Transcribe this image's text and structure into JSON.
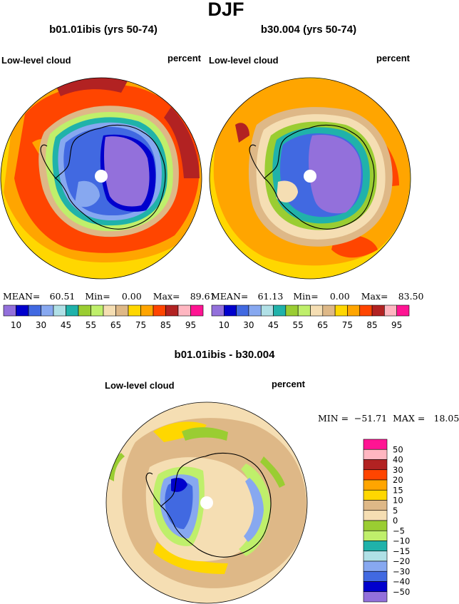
{
  "title": "DJF",
  "panels": [
    {
      "title": "b01.01ibis (yrs 50-74)",
      "field": "Low-level cloud",
      "units": "percent",
      "stats": {
        "mean_label": "MEAN=",
        "mean": "60.51",
        "min_label": "Min=",
        "min": "0.00",
        "max_label": "Max=",
        "max": "89.61"
      }
    },
    {
      "title": "b30.004 (yrs 50-74)",
      "field": "Low-level cloud",
      "units": "percent",
      "stats": {
        "mean_label": "MEAN=",
        "mean": "61.13",
        "min_label": "Min=",
        "min": "0.00",
        "max_label": "Max=",
        "max": "83.50"
      }
    },
    {
      "title": "b01.01ibis - b30.004",
      "field": "Low-level cloud",
      "units": "percent",
      "stats": {
        "min_label": "MIN =",
        "min": "−51.71",
        "max_label": "MAX =",
        "max": "18.05"
      }
    }
  ],
  "chart_data": [
    {
      "type": "heatmap",
      "projection": "south polar stereographic",
      "title": "b01.01ibis (yrs 50-74)",
      "variable": "Low-level cloud",
      "units": "percent",
      "levels": [
        10,
        20,
        30,
        40,
        45,
        50,
        55,
        60,
        65,
        70,
        75,
        80,
        85,
        90,
        95
      ],
      "colorbar_ticks": [
        "10",
        "30",
        "45",
        "55",
        "65",
        "75",
        "85",
        "95"
      ],
      "colors": [
        "#9370db",
        "#0000cd",
        "#4169e1",
        "#87a8f0",
        "#b0e0e6",
        "#20b2aa",
        "#9acd32",
        "#bfef6b",
        "#f5deb3",
        "#deb887",
        "#ffd700",
        "#ffa500",
        "#ff4500",
        "#b22222",
        "#ffb6c1",
        "#ff1493"
      ],
      "mean": 60.51,
      "min": 0.0,
      "max": 89.61
    },
    {
      "type": "heatmap",
      "projection": "south polar stereographic",
      "title": "b30.004 (yrs 50-74)",
      "variable": "Low-level cloud",
      "units": "percent",
      "levels": [
        10,
        20,
        30,
        40,
        45,
        50,
        55,
        60,
        65,
        70,
        75,
        80,
        85,
        90,
        95
      ],
      "colorbar_ticks": [
        "10",
        "30",
        "45",
        "55",
        "65",
        "75",
        "85",
        "95"
      ],
      "colors": [
        "#9370db",
        "#0000cd",
        "#4169e1",
        "#87a8f0",
        "#b0e0e6",
        "#20b2aa",
        "#9acd32",
        "#bfef6b",
        "#f5deb3",
        "#deb887",
        "#ffd700",
        "#ffa500",
        "#ff4500",
        "#b22222",
        "#ffb6c1",
        "#ff1493"
      ],
      "mean": 61.13,
      "min": 0.0,
      "max": 83.5
    },
    {
      "type": "heatmap",
      "projection": "south polar stereographic",
      "title": "b01.01ibis - b30.004",
      "variable": "Low-level cloud",
      "units": "percent",
      "levels": [
        -50,
        -40,
        -30,
        -20,
        -15,
        -10,
        -5,
        0,
        5,
        10,
        15,
        20,
        30,
        40,
        50
      ],
      "colorbar_ticks": [
        "50",
        "40",
        "30",
        "20",
        "15",
        "10",
        "5",
        "0",
        "−5",
        "−10",
        "−15",
        "−20",
        "−30",
        "−40",
        "−50"
      ],
      "colors": [
        "#ff1493",
        "#ffb6c1",
        "#b22222",
        "#ff4500",
        "#ffa500",
        "#ffd700",
        "#deb887",
        "#f5deb3",
        "#9acd32",
        "#bfef6b",
        "#20b2aa",
        "#b0e0e6",
        "#87a8f0",
        "#4169e1",
        "#0000cd",
        "#9370db"
      ],
      "min": -51.71,
      "max": 18.05
    }
  ]
}
